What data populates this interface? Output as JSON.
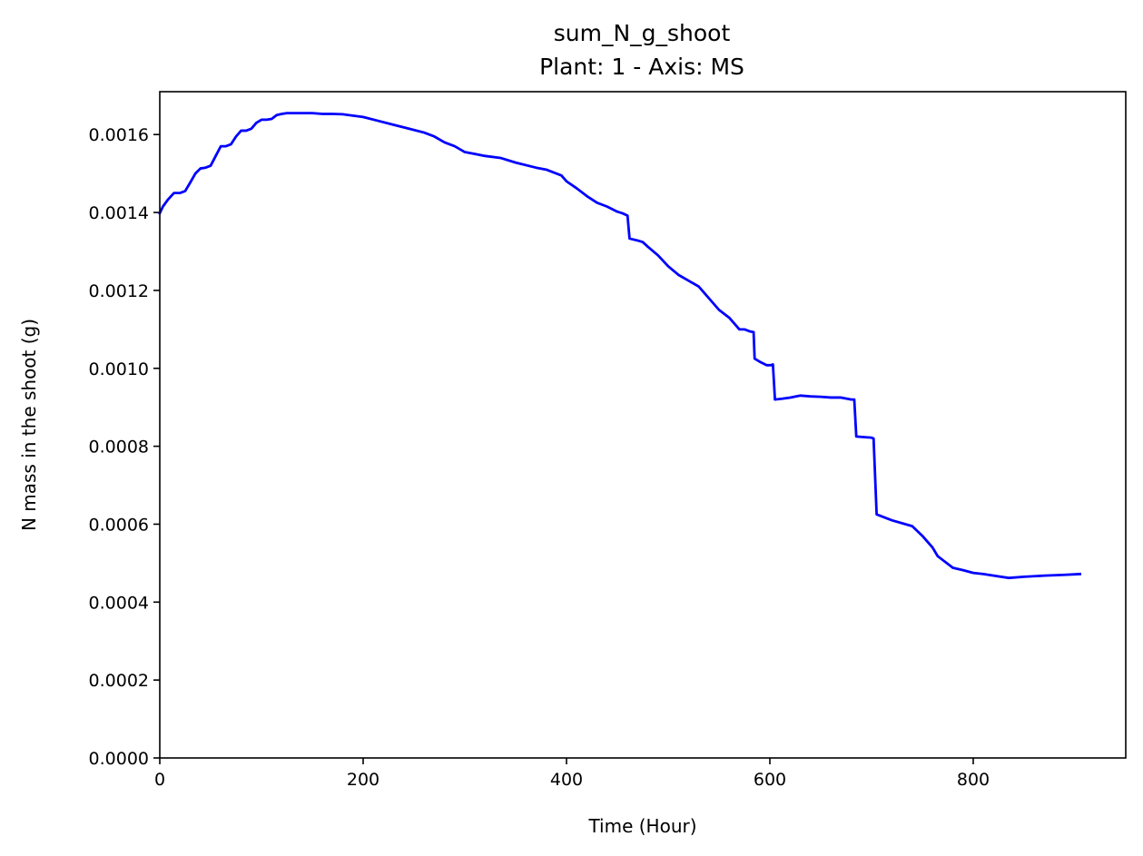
{
  "chart_data": {
    "type": "line",
    "title": "sum_N_g_shoot",
    "subtitle": "Plant: 1 - Axis: MS",
    "xlabel": "Time (Hour)",
    "ylabel": "N mass in the shoot (g)",
    "xlim": [
      0,
      950
    ],
    "ylim": [
      0,
      0.00171
    ],
    "grid": false,
    "x_ticks": [
      0,
      200,
      400,
      600,
      800
    ],
    "x_tick_labels": [
      "0",
      "200",
      "400",
      "600",
      "800"
    ],
    "y_ticks": [
      0,
      0.0002,
      0.0004,
      0.0006,
      0.0008,
      0.001,
      0.0012,
      0.0014,
      0.0016
    ],
    "y_tick_labels": [
      "0.0000",
      "0.0002",
      "0.0004",
      "0.0006",
      "0.0008",
      "0.0010",
      "0.0012",
      "0.0014",
      "0.0016"
    ],
    "series": [
      {
        "color": "#0000ff",
        "x": [
          0,
          3,
          8,
          14,
          20,
          25,
          30,
          35,
          40,
          45,
          50,
          55,
          60,
          65,
          70,
          75,
          80,
          85,
          90,
          95,
          100,
          105,
          110,
          115,
          120,
          125,
          130,
          140,
          150,
          160,
          170,
          180,
          200,
          215,
          230,
          245,
          260,
          270,
          280,
          290,
          300,
          310,
          320,
          335,
          350,
          370,
          380,
          395,
          400,
          410,
          420,
          430,
          440,
          450,
          455,
          460,
          462,
          470,
          475,
          480,
          490,
          500,
          510,
          520,
          530,
          535,
          540,
          550,
          560,
          570,
          575,
          580,
          584,
          585,
          590,
          597,
          601,
          603,
          605,
          612,
          620,
          630,
          640,
          650,
          660,
          670,
          680,
          683,
          685,
          695,
          700,
          702,
          705,
          720,
          740,
          750,
          760,
          765,
          770,
          780,
          790,
          800,
          810,
          820,
          835,
          850,
          870,
          890,
          905
        ],
        "y": [
          0.001398,
          0.001415,
          0.001433,
          0.00145,
          0.00145,
          0.001455,
          0.001477,
          0.0015,
          0.001513,
          0.001515,
          0.00152,
          0.001545,
          0.00157,
          0.00157,
          0.001575,
          0.001595,
          0.00161,
          0.00161,
          0.001615,
          0.00163,
          0.001638,
          0.001638,
          0.00164,
          0.00165,
          0.001653,
          0.001655,
          0.001655,
          0.001655,
          0.001655,
          0.001653,
          0.001653,
          0.001652,
          0.001645,
          0.001635,
          0.001625,
          0.001615,
          0.001605,
          0.001595,
          0.00158,
          0.00157,
          0.001555,
          0.00155,
          0.001545,
          0.00154,
          0.001528,
          0.001515,
          0.00151,
          0.001495,
          0.00148,
          0.001462,
          0.001442,
          0.001425,
          0.001415,
          0.001402,
          0.001398,
          0.001392,
          0.001333,
          0.001328,
          0.001324,
          0.001312,
          0.00129,
          0.001262,
          0.00124,
          0.001225,
          0.00121,
          0.001195,
          0.00118,
          0.00115,
          0.00113,
          0.0011,
          0.0011,
          0.001095,
          0.001093,
          0.001025,
          0.001017,
          0.001008,
          0.001008,
          0.00101,
          0.00092,
          0.000922,
          0.000925,
          0.00093,
          0.000928,
          0.000927,
          0.000925,
          0.000925,
          0.00092,
          0.00092,
          0.000825,
          0.000823,
          0.000822,
          0.00082,
          0.000625,
          0.00061,
          0.000595,
          0.00057,
          0.00054,
          0.000518,
          0.000508,
          0.000488,
          0.000482,
          0.000475,
          0.000472,
          0.000468,
          0.000462,
          0.000465,
          0.000468,
          0.00047,
          0.000472
        ]
      }
    ]
  }
}
